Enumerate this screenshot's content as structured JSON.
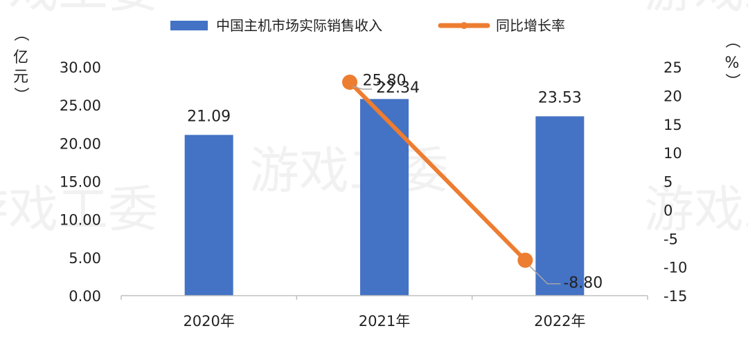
{
  "chart_data": {
    "type": "bar",
    "categories": [
      "2020年",
      "2021年",
      "2022年"
    ],
    "series": [
      {
        "name": "中国主机市场实际销售收入",
        "type": "bar",
        "axis": "left",
        "values": [
          21.09,
          25.8,
          23.53
        ],
        "labels": [
          "21.09",
          "25.80",
          "23.53"
        ],
        "color": "#4472C4"
      },
      {
        "name": "同比增长率",
        "type": "line",
        "axis": "right",
        "values": [
          null,
          22.34,
          -8.8
        ],
        "labels": [
          "",
          "22.34",
          "-8.80"
        ],
        "color": "#ED7D31"
      }
    ],
    "y_left": {
      "unit_chars": [
        "（",
        "亿",
        "元",
        "）"
      ],
      "ticks": [
        "0.00",
        "5.00",
        "10.00",
        "15.00",
        "20.00",
        "25.00",
        "30.00"
      ],
      "ylim": [
        0,
        30
      ]
    },
    "y_right": {
      "unit_chars": [
        "（",
        "%",
        "）"
      ],
      "ticks": [
        "-15",
        "-10",
        "-5",
        "0",
        "5",
        "10",
        "15",
        "20",
        "25"
      ],
      "ylim": [
        -15,
        25
      ]
    },
    "legend_position": "top-center",
    "grid": false
  },
  "watermark": "游戏工委"
}
